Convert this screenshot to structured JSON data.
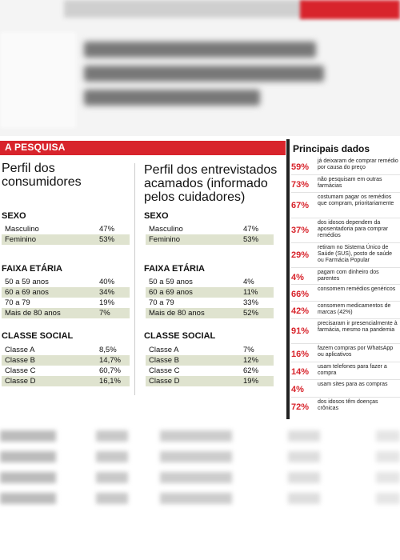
{
  "header": {
    "label": "A PESQUISA"
  },
  "left": {
    "title_line1": "Perfil dos",
    "title_line2": "consumidores",
    "sexo": {
      "title": "SEXO",
      "rows": [
        {
          "label": "Masculino",
          "value": "47%"
        },
        {
          "label": "Feminino",
          "value": "53%"
        }
      ]
    },
    "faixa": {
      "title": "FAIXA ETÁRIA",
      "rows": [
        {
          "label": "50 a 59 anos",
          "value": "40%"
        },
        {
          "label": "60 a 69 anos",
          "value": "34%"
        },
        {
          "label": "70 a 79",
          "value": "19%"
        },
        {
          "label": "Mais de 80 anos",
          "value": "7%"
        }
      ]
    },
    "classe": {
      "title": "CLASSE SOCIAL",
      "rows": [
        {
          "label": "Classe A",
          "value": "8,5%"
        },
        {
          "label": "Classe B",
          "value": "14,7%"
        },
        {
          "label": "Classe C",
          "value": "60,7%"
        },
        {
          "label": "Classe D",
          "value": "16,1%"
        }
      ]
    }
  },
  "middle": {
    "title_line1": "Perfil dos entrevistados",
    "title_line2": "acamados (informado",
    "title_line3": "pelos cuidadores)",
    "sexo": {
      "title": "SEXO",
      "rows": [
        {
          "label": "Masculino",
          "value": "47%"
        },
        {
          "label": "Feminino",
          "value": "53%"
        }
      ]
    },
    "faixa": {
      "title": "FAIXA ETÁRIA",
      "rows": [
        {
          "label": "50 a 59 anos",
          "value": "4%"
        },
        {
          "label": "60 a 69 anos",
          "value": "11%"
        },
        {
          "label": "70 a 79",
          "value": "33%"
        },
        {
          "label": "Mais de 80 anos",
          "value": "52%"
        }
      ]
    },
    "classe": {
      "title": "CLASSE SOCIAL",
      "rows": [
        {
          "label": "Classe A",
          "value": "7%"
        },
        {
          "label": "Classe B",
          "value": "12%"
        },
        {
          "label": "Classe C",
          "value": "62%"
        },
        {
          "label": "Classe D",
          "value": "19%"
        }
      ]
    }
  },
  "principais": {
    "title": "Principais dados",
    "items": [
      {
        "pct": "59%",
        "text": "já deixaram de comprar remédio por causa do preço"
      },
      {
        "pct": "73%",
        "text": "não pesquisam em outras farmácias"
      },
      {
        "pct": "67%",
        "text": "costumam pagar os remédios que compram, prioritariamente"
      },
      {
        "pct": "37%",
        "text": "dos idosos dependem da aposentadoria para comprar remédios"
      },
      {
        "pct": "29%",
        "text": "retiram no Sistema Único de Saúde (SUS), posto de saúde ou Farmácia Popular"
      },
      {
        "pct": "4%",
        "text": "pagam com dinheiro dos parentes"
      },
      {
        "pct": "66%",
        "text": "consomem remédios genéricos"
      },
      {
        "pct": "42%",
        "text": "consomem medicamentos de marcas (42%)"
      },
      {
        "pct": "91%",
        "text": "precisaram ir presencialmente à farmácia, mesmo na pandemia"
      },
      {
        "pct": "16%",
        "text": "fazem compras por WhatsApp ou aplicativos"
      },
      {
        "pct": "14%",
        "text": "usam telefones para fazer a compra"
      },
      {
        "pct": "4%",
        "text": "usam sites para as compras"
      },
      {
        "pct": "72%",
        "text": "dos idosos têm doenças crônicas"
      }
    ]
  }
}
